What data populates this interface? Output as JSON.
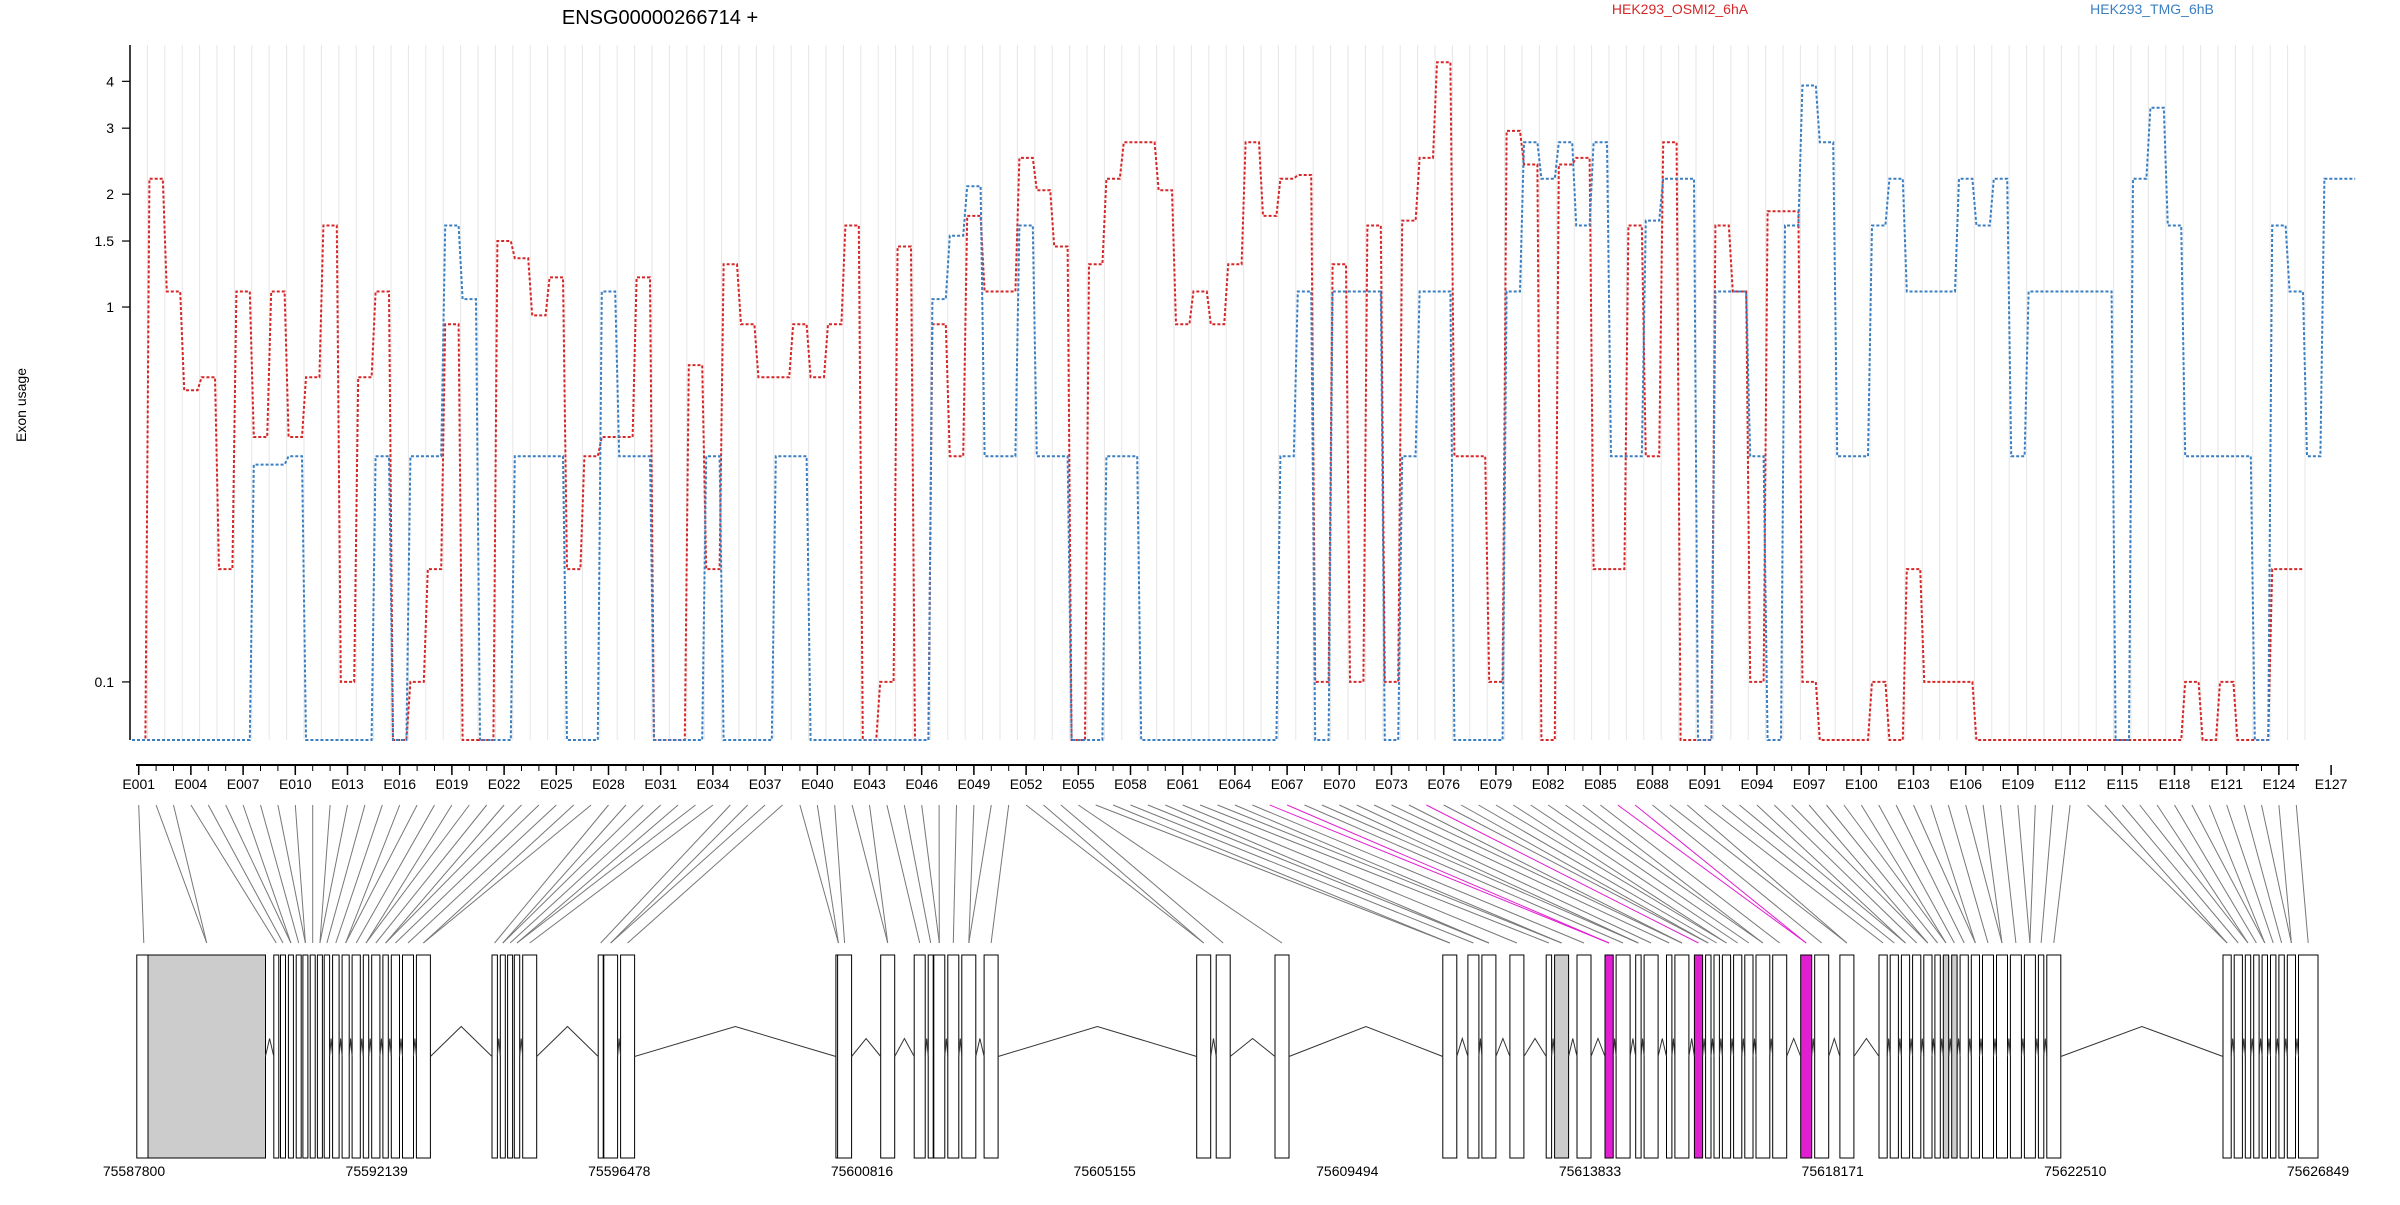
{
  "title": "ENSG00000266714 +",
  "ylabel": "Exon usage",
  "legend": [
    {
      "name": "HEK293_OSMI2_6hA",
      "color": "#d62728"
    },
    {
      "name": "HEK293_TMG_6hB",
      "color": "#3a7fc1"
    }
  ],
  "chart_data": {
    "type": "line",
    "title": "ENSG00000266714 +",
    "ylabel": "Exon usage",
    "xlabel": "",
    "yscale": "log",
    "ylim": [
      0.07,
      5
    ],
    "yticks": [
      0.1,
      1,
      1.5,
      2,
      3,
      4
    ],
    "ytick_labels": [
      "0.1",
      "1",
      "1.5",
      "2",
      "3",
      "4"
    ],
    "x_tick_labels": [
      "E001",
      "E004",
      "E007",
      "E010",
      "E013",
      "E016",
      "E019",
      "E022",
      "E025",
      "E028",
      "E031",
      "E034",
      "E037",
      "E040",
      "E043",
      "E046",
      "E049",
      "E052",
      "E055",
      "E058",
      "E061",
      "E064",
      "E067",
      "E070",
      "E073",
      "E076",
      "E079",
      "E082",
      "E085",
      "E088",
      "E091",
      "E094",
      "E097",
      "E100",
      "E103",
      "E106",
      "E109",
      "E112",
      "E115",
      "E118",
      "E121",
      "E124",
      "E127"
    ],
    "legend_placement": "top",
    "grid": "vertical lines per exon",
    "series": [
      {
        "name": "HEK293_OSMI2_6hA",
        "color": "#d62728",
        "values": [
          0.07,
          2.2,
          1.1,
          0.6,
          0.65,
          0.2,
          1.1,
          0.45,
          1.1,
          0.45,
          0.65,
          1.65,
          0.1,
          0.65,
          1.1,
          0.07,
          0.1,
          0.2,
          0.9,
          0.07,
          0.07,
          1.5,
          1.35,
          0.95,
          1.2,
          0.2,
          0.4,
          0.45,
          0.45,
          1.2,
          0.07,
          0.07,
          0.7,
          0.2,
          1.3,
          0.9,
          0.65,
          0.65,
          0.9,
          0.65,
          0.9,
          1.65,
          0.07,
          0.1,
          1.45,
          0.07,
          0.9,
          0.4,
          1.75,
          1.1,
          1.1,
          2.5,
          2.05,
          1.45,
          0.07,
          1.3,
          2.2,
          2.75,
          2.75,
          2.05,
          0.9,
          1.1,
          0.9,
          1.3,
          2.75,
          1.75,
          2.2,
          2.25,
          0.1,
          1.3,
          0.1,
          1.65,
          0.1,
          1.7,
          2.5,
          4.5,
          0.4,
          0.4,
          0.1,
          2.95,
          2.4,
          0.07,
          2.4,
          2.5,
          0.2,
          0.2,
          1.65,
          0.4,
          2.75,
          0.07,
          0.07,
          1.65,
          1.1,
          0.1,
          1.8,
          1.8,
          0.1,
          0.07,
          0.07,
          0.07,
          0.1,
          0.07,
          0.2,
          0.1,
          0.1,
          0.1,
          0.07,
          0.07,
          0.07,
          0.07,
          0.07,
          0.07,
          0.07,
          0.07,
          0.07,
          0.07,
          0.07,
          0.07,
          0.1,
          0.07,
          0.1,
          0.07,
          0.07,
          0.2,
          0.2
        ]
      },
      {
        "name": "HEK293_TMG_6hB",
        "color": "#3a7fc1",
        "values": [
          0.07,
          0.07,
          0.07,
          0.07,
          0.07,
          0.07,
          0.07,
          0.38,
          0.38,
          0.4,
          0.07,
          0.07,
          0.07,
          0.07,
          0.4,
          0.07,
          0.4,
          0.4,
          1.65,
          1.05,
          0.07,
          0.07,
          0.4,
          0.4,
          0.4,
          0.07,
          0.07,
          1.1,
          0.4,
          0.4,
          0.07,
          0.07,
          0.07,
          0.4,
          0.07,
          0.07,
          0.07,
          0.4,
          0.4,
          0.07,
          0.07,
          0.07,
          0.07,
          0.07,
          0.07,
          0.07,
          1.05,
          1.55,
          2.1,
          0.4,
          0.4,
          1.65,
          0.4,
          0.4,
          0.07,
          0.07,
          0.4,
          0.4,
          0.07,
          0.07,
          0.07,
          0.07,
          0.07,
          0.07,
          0.07,
          0.07,
          0.4,
          1.1,
          0.07,
          1.1,
          1.1,
          1.1,
          0.07,
          0.4,
          1.1,
          1.1,
          0.07,
          0.07,
          0.07,
          1.1,
          2.75,
          2.2,
          2.75,
          1.65,
          2.75,
          0.4,
          0.4,
          1.7,
          2.2,
          2.2,
          0.07,
          1.1,
          1.1,
          0.4,
          0.07,
          1.65,
          3.9,
          2.75,
          0.4,
          0.4,
          1.65,
          2.2,
          1.1,
          1.1,
          1.1,
          2.2,
          1.65,
          2.2,
          0.4,
          1.1,
          1.1,
          1.1,
          1.1,
          1.1,
          0.07,
          2.2,
          3.4,
          1.65,
          0.4,
          0.4,
          0.4,
          0.4,
          0.07,
          1.65,
          1.1,
          0.4,
          2.2,
          2.2
        ]
      }
    ]
  },
  "gene_model": {
    "coordinate_labels": [
      "75587800",
      "75592139",
      "75596478",
      "75600816",
      "75605155",
      "75609494",
      "75613833",
      "75618171",
      "75622510",
      "75626849"
    ],
    "genomic_start": 75587800,
    "genomic_end": 75626849,
    "highlight_color": "#e020d0",
    "exon_fill": "#ffffff",
    "wide_exon_fill": "#cccccc",
    "exon_starts": [
      75587850,
      75588050,
      75590300,
      75590420,
      75590560,
      75590700,
      75590820,
      75590950,
      75591080,
      75591200,
      75591350,
      75591520,
      75591700,
      75591900,
      75592050,
      75592250,
      75592400,
      75592600,
      75592850,
      75594200,
      75594350,
      75594480,
      75594600,
      75594750,
      75596100,
      75596200,
      75596500,
      75600350,
      75600380,
      75601150,
      75601750,
      75602000,
      75602100,
      75602350,
      75602600,
      75603000,
      75606800,
      75607150,
      75608200,
      75611200,
      75611650,
      75611900,
      75612400,
      75613050,
      75613200,
      75613600,
      75614100,
      75614300,
      75614650,
      75614800,
      75615200,
      75615350,
      75615700,
      75615900,
      75616050,
      75616200,
      75616400,
      75616600,
      75616800,
      75617100,
      75617600,
      75617850,
      75618300,
      75619000,
      75619200,
      75619400,
      75619600,
      75619800,
      75620000,
      75620150,
      75620300,
      75620450,
      75620650,
      75620850,
      75621100,
      75621350,
      75621600,
      75621850,
      75622000,
      75625150,
      75625350,
      75625550,
      75625700,
      75625850,
      75626000,
      75626150,
      75626300,
      75626500
    ]
  },
  "exon_labels": [
    "E001",
    "E004",
    "E007",
    "E010",
    "E013",
    "E016",
    "E019",
    "E022",
    "E025",
    "E028",
    "E031",
    "E034",
    "E037",
    "E040",
    "E043",
    "E046",
    "E049",
    "E052",
    "E055",
    "E058",
    "E061",
    "E064",
    "E067",
    "E070",
    "E073",
    "E076",
    "E079",
    "E082",
    "E085",
    "E088",
    "E091",
    "E094",
    "E097",
    "E100",
    "E103",
    "E106",
    "E109",
    "E112",
    "E115",
    "E118",
    "E121",
    "E124",
    "E127"
  ]
}
